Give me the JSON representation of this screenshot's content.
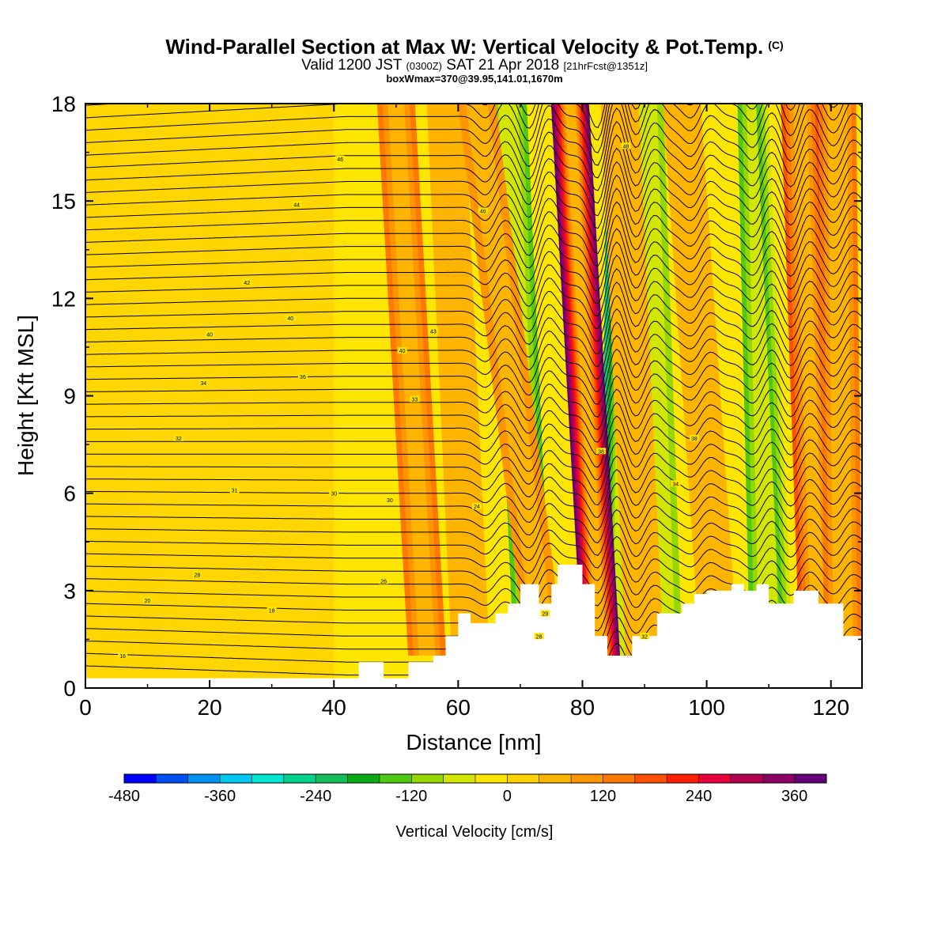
{
  "header": {
    "title": "Wind-Parallel Section at Max W: Vertical Velocity & Pot.Temp.",
    "copyright": "(C)",
    "valid_prefix": "Valid 1200 JST",
    "zulu": "(0300Z)",
    "valid_date": "SAT 21 Apr 2018",
    "forecast": "[21hrFcst@1351z]",
    "boxinfo": "boxWmax=370@39.95,141.01,1670m"
  },
  "chart_data": {
    "type": "heatmap",
    "xlabel": "Distance [nm]",
    "ylabel": "Height [Kft MSL]",
    "xlim": [
      0,
      125
    ],
    "ylim": [
      0,
      18
    ],
    "xticks": [
      0,
      20,
      40,
      60,
      80,
      100,
      120
    ],
    "yticks": [
      0,
      3,
      6,
      9,
      12,
      15,
      18
    ],
    "colorbar": {
      "label": "Vertical Velocity [cm/s]",
      "ticks": [
        -480,
        -360,
        -240,
        -120,
        0,
        120,
        240,
        360
      ],
      "min": -480,
      "max": 400,
      "step": 40,
      "colors": [
        "#0000ff",
        "#0050f0",
        "#0090f0",
        "#00c8f0",
        "#00e6d2",
        "#00d28c",
        "#14be5a",
        "#0aaa14",
        "#50c814",
        "#96d700",
        "#d2e600",
        "#ffe600",
        "#ffd200",
        "#ffb400",
        "#ff9600",
        "#ff7800",
        "#ff5000",
        "#ff1e00",
        "#e6003c",
        "#b40050",
        "#8c0064",
        "#640078"
      ]
    },
    "updraft_bands": [
      {
        "x_bottom": 55,
        "x_top": 50,
        "w": 120
      },
      {
        "x_bottom": 62,
        "x_top": 58,
        "w": 60
      },
      {
        "x_bottom": 74,
        "x_top": 63,
        "w": 80
      },
      {
        "x_bottom": 83,
        "x_top": 78,
        "w": 370
      },
      {
        "x_bottom": 90,
        "x_top": 86,
        "w": 60
      },
      {
        "x_bottom": 102,
        "x_top": 96,
        "w": 40
      },
      {
        "x_bottom": 118,
        "x_top": 115,
        "w": 160
      },
      {
        "x_bottom": 122,
        "x_top": 121,
        "w": 140
      }
    ],
    "downdraft_bands": [
      {
        "x_bottom": 72,
        "x_top": 68,
        "w": -140
      },
      {
        "x_bottom": 86,
        "x_top": 87,
        "w": -260
      },
      {
        "x_bottom": 93,
        "x_top": 90,
        "w": -100
      },
      {
        "x_bottom": 110,
        "x_top": 108,
        "w": -140
      },
      {
        "x_bottom": 115,
        "x_top": 111,
        "w": -160
      }
    ],
    "terrain_x": [
      0,
      44,
      44,
      48,
      48,
      52,
      52,
      56,
      56,
      58,
      58,
      60,
      60,
      62,
      62,
      66,
      66,
      68,
      68,
      70,
      70,
      73,
      73,
      75,
      75,
      76,
      76,
      80,
      80,
      82,
      82,
      84,
      84,
      88,
      88,
      92,
      92,
      96,
      96,
      98,
      98,
      100,
      100,
      104,
      104,
      106,
      106,
      108,
      108,
      110,
      110,
      114,
      114,
      118,
      118,
      122,
      122,
      125
    ],
    "terrain_ft": [
      300,
      300,
      800,
      800,
      300,
      300,
      800,
      800,
      1000,
      1000,
      1600,
      1600,
      2300,
      2300,
      2000,
      2000,
      2300,
      2300,
      2600,
      2600,
      3200,
      3200,
      2600,
      2600,
      3200,
      3200,
      3800,
      3800,
      3200,
      3200,
      1600,
      1600,
      1000,
      1000,
      1600,
      1600,
      2300,
      2300,
      2600,
      2600,
      2900,
      2900,
      3000,
      3000,
      3200,
      3200,
      3000,
      3000,
      3200,
      3200,
      2600,
      2600,
      3000,
      3000,
      2600,
      2600,
      1600,
      1600
    ],
    "theta_isentropes": [
      16,
      18,
      20,
      22,
      24,
      26,
      28,
      30,
      32,
      34,
      36,
      38,
      40,
      42
    ]
  },
  "theta_labels": [
    "16",
    "18",
    "20",
    "24",
    "26",
    "28",
    "28",
    "29",
    "30",
    "30",
    "31",
    "32",
    "32",
    "33",
    "34",
    "34",
    "36",
    "38",
    "38",
    "40",
    "40",
    "40",
    "42",
    "43",
    "44",
    "46",
    "46",
    "48"
  ]
}
